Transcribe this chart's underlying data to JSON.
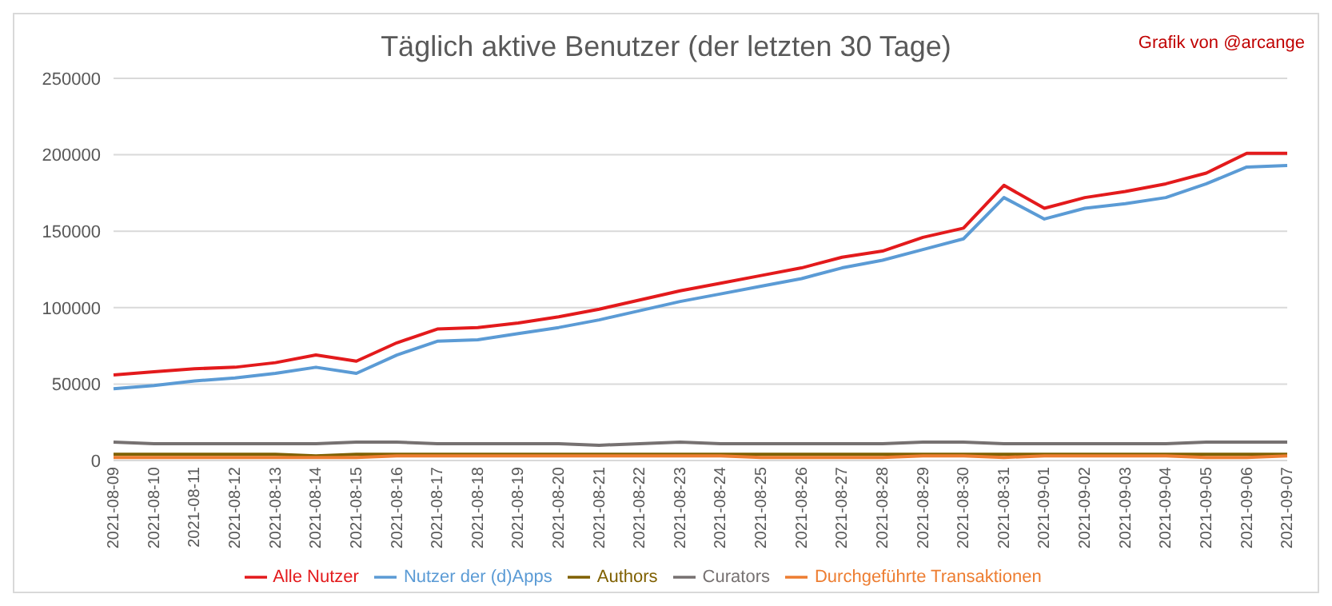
{
  "chart_data": {
    "type": "line",
    "title": "Täglich aktive Benutzer (der letzten 30 Tage)",
    "annotations": [
      "Grafik von @arcange"
    ],
    "categories": [
      "2021-08-09",
      "2021-08-10",
      "2021-08-11",
      "2021-08-12",
      "2021-08-13",
      "2021-08-14",
      "2021-08-15",
      "2021-08-16",
      "2021-08-17",
      "2021-08-18",
      "2021-08-19",
      "2021-08-20",
      "2021-08-21",
      "2021-08-22",
      "2021-08-23",
      "2021-08-24",
      "2021-08-25",
      "2021-08-26",
      "2021-08-27",
      "2021-08-28",
      "2021-08-29",
      "2021-08-30",
      "2021-08-31",
      "2021-09-01",
      "2021-09-02",
      "2021-09-03",
      "2021-09-04",
      "2021-09-05",
      "2021-09-06",
      "2021-09-07"
    ],
    "series": [
      {
        "name": "Alle Nutzer",
        "color": "#e31a1c",
        "values": [
          56000,
          58000,
          60000,
          61000,
          64000,
          69000,
          65000,
          77000,
          86000,
          87000,
          90000,
          94000,
          99000,
          105000,
          111000,
          116000,
          121000,
          126000,
          133000,
          137000,
          146000,
          152000,
          180000,
          165000,
          172000,
          176000,
          181000,
          188000,
          201000,
          201000
        ]
      },
      {
        "name": "Nutzer der (d)Apps",
        "color": "#5b9bd5",
        "values": [
          47000,
          49000,
          52000,
          54000,
          57000,
          61000,
          57000,
          69000,
          78000,
          79000,
          83000,
          87000,
          92000,
          98000,
          104000,
          109000,
          114000,
          119000,
          126000,
          131000,
          138000,
          145000,
          172000,
          158000,
          165000,
          168000,
          172000,
          181000,
          192000,
          193000
        ]
      },
      {
        "name": "Authors",
        "color": "#7f6000",
        "values": [
          4000,
          4000,
          4000,
          4000,
          4000,
          3000,
          4000,
          4000,
          4000,
          4000,
          4000,
          4000,
          4000,
          4000,
          4000,
          4000,
          4000,
          4000,
          4000,
          4000,
          4000,
          4000,
          4000,
          4000,
          4000,
          4000,
          4000,
          4000,
          4000,
          4000
        ]
      },
      {
        "name": "Curators",
        "color": "#767171",
        "values": [
          12000,
          11000,
          11000,
          11000,
          11000,
          11000,
          12000,
          12000,
          11000,
          11000,
          11000,
          11000,
          10000,
          11000,
          12000,
          11000,
          11000,
          11000,
          11000,
          11000,
          12000,
          12000,
          11000,
          11000,
          11000,
          11000,
          11000,
          12000,
          12000,
          12000
        ]
      },
      {
        "name": "Durchgeführte Transaktionen",
        "color": "#ed7d31",
        "values": [
          2000,
          2000,
          2000,
          2000,
          2000,
          2000,
          2000,
          3000,
          3000,
          3000,
          3000,
          3000,
          3000,
          3000,
          3000,
          3000,
          2000,
          2000,
          2000,
          2000,
          3000,
          3000,
          2000,
          3000,
          3000,
          3000,
          3000,
          2000,
          2000,
          3000
        ]
      }
    ],
    "ylim": [
      0,
      250000
    ],
    "yticks": [
      0,
      50000,
      100000,
      150000,
      200000,
      250000
    ],
    "grid": "y",
    "legend": "bottom",
    "marker": "none",
    "line_style": "solid"
  }
}
